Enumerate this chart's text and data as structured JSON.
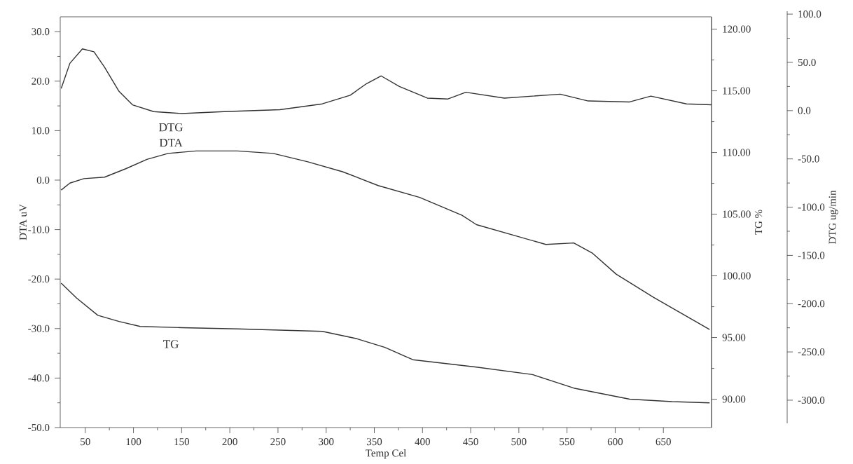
{
  "chart_data": {
    "type": "line",
    "xlabel": "Temp Cel",
    "ylabel": "DTA uV",
    "y2label": "TG %",
    "y3label": "DTG ug/min",
    "xlim": [
      24,
      700
    ],
    "xticks": [
      50,
      100,
      150,
      200,
      250,
      300,
      350,
      400,
      450,
      500,
      550,
      600,
      650
    ],
    "ylim": [
      -50,
      33
    ],
    "yticks": [
      {
        "value": -50,
        "label": "-50.0"
      },
      {
        "value": -40,
        "label": "-40.0"
      },
      {
        "value": -30,
        "label": "-30.0"
      },
      {
        "value": -20,
        "label": "-20.0"
      },
      {
        "value": -10,
        "label": "-10.0"
      },
      {
        "value": 0,
        "label": "0.0"
      },
      {
        "value": 10,
        "label": "10.0"
      },
      {
        "value": 20,
        "label": "20.0"
      },
      {
        "value": 30,
        "label": "30.0"
      }
    ],
    "y2lim": [
      87.7,
      121
    ],
    "y2ticks": [
      {
        "value": 90,
        "label": "90.00"
      },
      {
        "value": 95,
        "label": "95.00"
      },
      {
        "value": 100,
        "label": "100.00"
      },
      {
        "value": 105,
        "label": "105.00"
      },
      {
        "value": 110,
        "label": "110.00"
      },
      {
        "value": 115,
        "label": "115.00"
      },
      {
        "value": 120,
        "label": "120.00"
      }
    ],
    "y3lim": [
      -324,
      103
    ],
    "y3ticks": [
      {
        "value": -300,
        "label": "-300.0"
      },
      {
        "value": -250,
        "label": "-250.0"
      },
      {
        "value": -200,
        "label": "-200.0"
      },
      {
        "value": -150,
        "label": "-150.0"
      },
      {
        "value": -100,
        "label": "-100.0"
      },
      {
        "value": -50,
        "label": "-50.0"
      },
      {
        "value": 0,
        "label": "0.0"
      },
      {
        "value": 50,
        "label": "50.0"
      },
      {
        "value": 100,
        "label": "100.0"
      }
    ],
    "grid": false,
    "legend": false,
    "marker": "none",
    "line_style": "solid",
    "series": [
      {
        "name": "DTG",
        "color": "#333333",
        "axis": "y3",
        "x": [
          25,
          34,
          47,
          59,
          70,
          85,
          99,
          121,
          150,
          194,
          252,
          296,
          325,
          342,
          357,
          376,
          405,
          426,
          445,
          485,
          543,
          572,
          615,
          637,
          674,
          700
        ],
        "values": [
          23,
          49,
          64,
          61,
          45,
          20,
          6,
          -1,
          -3,
          -1,
          1,
          7,
          16,
          28,
          36,
          25,
          13,
          12,
          19,
          13,
          17,
          10,
          9,
          15,
          7,
          6
        ]
      },
      {
        "name": "DTA",
        "color": "#333333",
        "axis": "y",
        "x": [
          25,
          34,
          48.5,
          70,
          92,
          114,
          136,
          165,
          208,
          245,
          281,
          317,
          354,
          397,
          441,
          456,
          528,
          557,
          576,
          601,
          640,
          698
        ],
        "values": [
          -2,
          -0.6,
          0.3,
          0.6,
          2.3,
          4.2,
          5.4,
          5.9,
          5.9,
          5.4,
          3.7,
          1.7,
          -1.1,
          -3.5,
          -7.1,
          -9,
          -13,
          -12.7,
          -14.7,
          -19,
          -23.7,
          -30.2
        ]
      },
      {
        "name": "TG",
        "color": "#333333",
        "axis": "y2",
        "x": [
          25,
          41,
          63,
          85,
          107,
          150,
          208,
          252,
          296,
          332,
          361,
          390,
          412,
          456,
          514,
          557,
          615,
          659,
          698
        ],
        "values": [
          99.4,
          98.2,
          96.8,
          96.3,
          95.9,
          95.8,
          95.7,
          95.6,
          95.5,
          94.9,
          94.2,
          93.2,
          93.0,
          92.6,
          92.0,
          90.9,
          90.0,
          89.8,
          89.7
        ]
      }
    ]
  }
}
